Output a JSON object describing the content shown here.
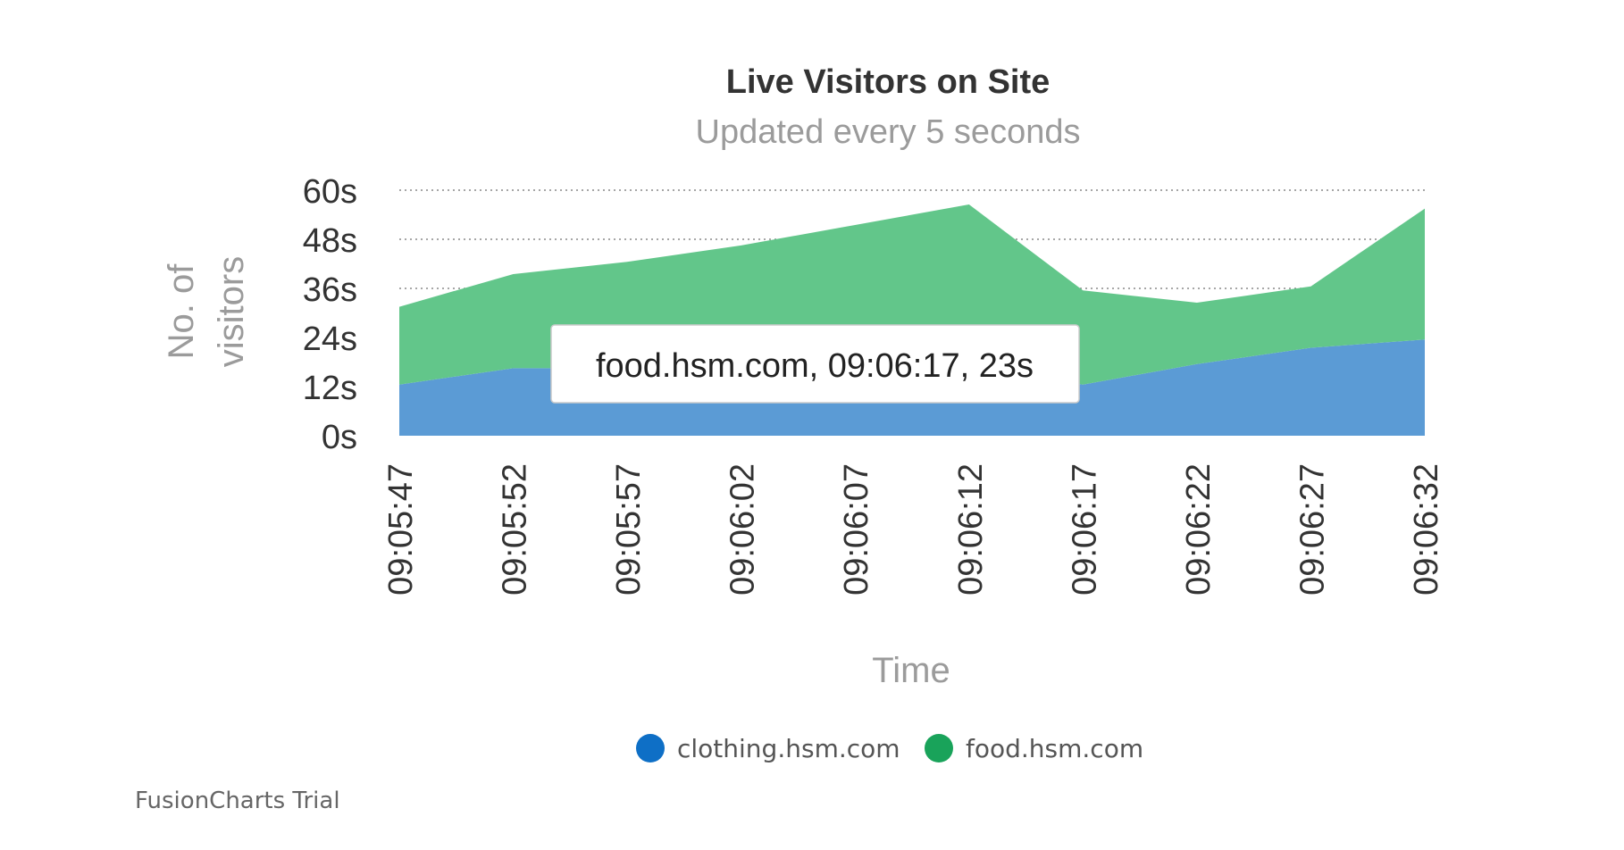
{
  "chart_data": {
    "type": "area",
    "stacked": true,
    "title": "Live Visitors on Site",
    "subtitle": "Updated every 5 seconds",
    "xlabel": "Time",
    "ylabel_lines": [
      "No. of",
      "visitors"
    ],
    "categories": [
      "09:05:47",
      "09:05:52",
      "09:05:57",
      "09:06:02",
      "09:06:07",
      "09:06:12",
      "09:06:17",
      "09:06:22",
      "09:06:27",
      "09:06:32"
    ],
    "y_ticks": [
      "0s",
      "12s",
      "24s",
      "36s",
      "48s",
      "60s"
    ],
    "ylim": [
      0,
      60
    ],
    "grid": true,
    "legend_position": "bottom",
    "series": [
      {
        "name": "clothing.hsm.com",
        "color": "#5b9bd5",
        "legend_color": "#0e6fc6",
        "values": [
          12.5,
          16.5,
          16.5,
          16.5,
          16.5,
          16.5,
          12.5,
          17.5,
          21.5,
          23.5
        ]
      },
      {
        "name": "food.hsm.com",
        "color": "#62c68a",
        "legend_color": "#19a35a",
        "values": [
          19,
          23,
          26,
          30,
          35,
          40,
          23,
          15,
          15,
          32
        ]
      }
    ],
    "tooltip": "food.hsm.com, 09:06:17, 23s"
  },
  "credit": "FusionCharts Trial"
}
